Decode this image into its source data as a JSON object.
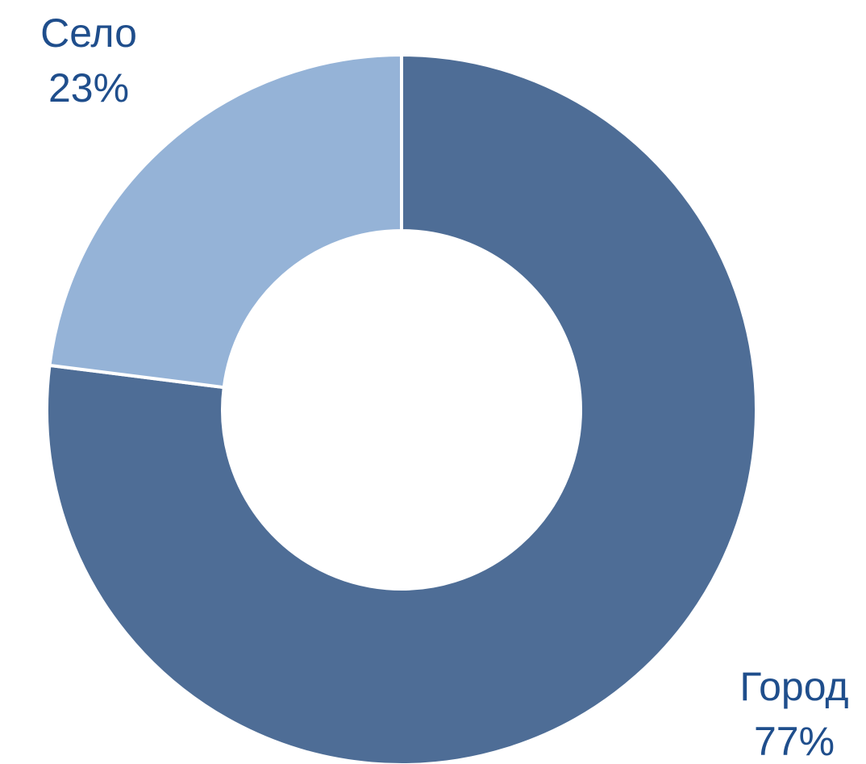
{
  "chart_data": {
    "type": "donut",
    "categories": [
      "Город",
      "Село"
    ],
    "values": [
      77,
      23
    ],
    "value_labels": [
      "77%",
      "23%"
    ],
    "colors": [
      "#4e6d96",
      "#95b3d7"
    ]
  }
}
